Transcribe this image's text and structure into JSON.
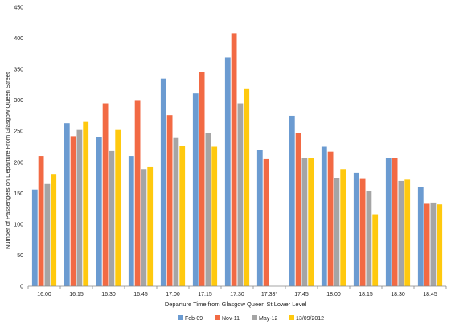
{
  "chart_data": {
    "type": "bar",
    "xlabel": "Departure Time from Glasgow Queen St Lower Level",
    "ylabel": "Number of Passengers on Departure From Glasgow Queen Street",
    "ylim": [
      0,
      450
    ],
    "yticks": [
      0,
      50,
      100,
      150,
      200,
      250,
      300,
      350,
      400,
      450
    ],
    "grid": false,
    "legend_position": "bottom",
    "categories": [
      "16:00",
      "16:15",
      "16:30",
      "16:45",
      "17:00",
      "17:15",
      "17:30",
      "17:33*",
      "17:45",
      "18:00",
      "18:15",
      "18:30",
      "18:45"
    ],
    "series": [
      {
        "name": "Feb-09",
        "color": "#6b9bd1",
        "values": [
          156,
          263,
          240,
          210,
          335,
          311,
          369,
          220,
          275,
          225,
          183,
          207,
          160
        ]
      },
      {
        "name": "Nov-11",
        "color": "#f26a44",
        "values": [
          210,
          242,
          295,
          299,
          276,
          346,
          408,
          205,
          247,
          217,
          173,
          207,
          133
        ]
      },
      {
        "name": "May-12",
        "color": "#a5a5a5",
        "values": [
          165,
          252,
          218,
          189,
          239,
          247,
          295,
          null,
          207,
          175,
          153,
          170,
          135
        ]
      },
      {
        "name": "13/09/2012",
        "color": "#ffc90e",
        "values": [
          180,
          265,
          252,
          192,
          226,
          225,
          318,
          null,
          207,
          189,
          116,
          172,
          132
        ]
      }
    ]
  }
}
